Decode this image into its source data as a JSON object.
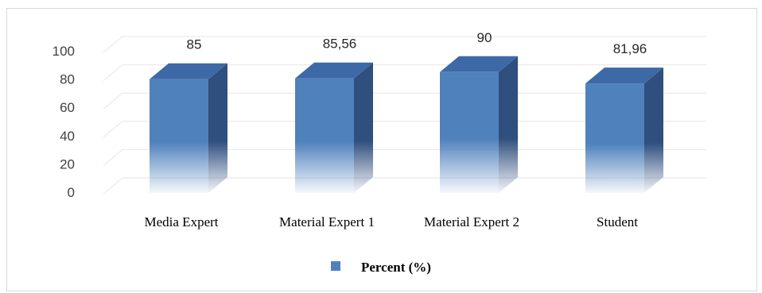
{
  "chart_data": {
    "type": "bar",
    "categories": [
      "Media Expert",
      "Material Expert 1",
      "Material Expert 2",
      "Student"
    ],
    "series": [
      {
        "name": "Percent (%)",
        "values": [
          85,
          85.56,
          90,
          81.96
        ]
      }
    ],
    "data_labels": [
      "85",
      "85,56",
      "90",
      "81,96"
    ],
    "yticks": [
      "0",
      "20",
      "40",
      "60",
      "80",
      "100"
    ],
    "ylim": [
      0,
      100
    ],
    "grid": true,
    "legend": "bottom",
    "title": "",
    "xlabel": "",
    "ylabel": "",
    "colors": {
      "bar_front": "#4f81bd",
      "bar_side": "#2f4f7f",
      "bar_top": "#3d6aa6",
      "grid": "#e6e6e6"
    }
  }
}
